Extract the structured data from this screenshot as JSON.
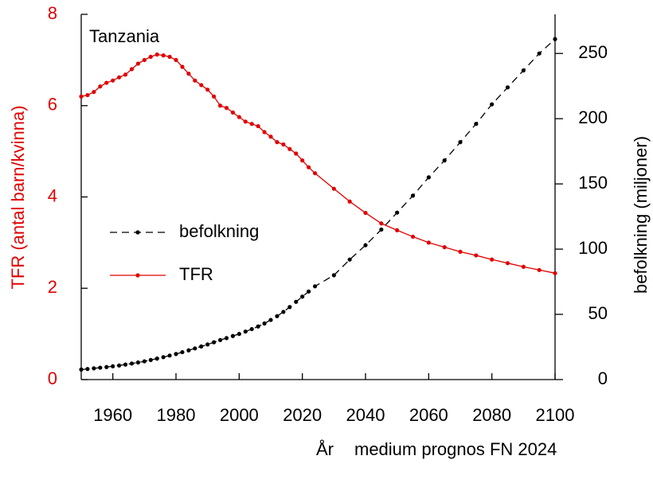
{
  "chart_data": {
    "type": "line",
    "title": "Tanzania",
    "xlabel": "År",
    "note": "medium prognos FN 2024",
    "ylabel": "TFR (antal barn/kvinna)",
    "y2label": "befolkning  (miljoner)",
    "x": [
      1950,
      1952,
      1954,
      1956,
      1958,
      1960,
      1962,
      1964,
      1966,
      1968,
      1970,
      1972,
      1974,
      1976,
      1978,
      1980,
      1982,
      1984,
      1986,
      1988,
      1990,
      1992,
      1994,
      1996,
      1998,
      2000,
      2002,
      2004,
      2006,
      2008,
      2010,
      2012,
      2014,
      2016,
      2018,
      2020,
      2022,
      2024,
      2030,
      2035,
      2040,
      2045,
      2050,
      2055,
      2060,
      2065,
      2070,
      2075,
      2080,
      2085,
      2090,
      2095,
      2100
    ],
    "series": [
      {
        "name": "befolkning",
        "color": "#000000",
        "axis": "y2",
        "linestyle": "dashed",
        "values": [
          7.7,
          8.1,
          8.6,
          9.1,
          9.6,
          10.2,
          10.8,
          11.5,
          12.3,
          13.1,
          14.0,
          15.0,
          16.1,
          17.2,
          18.4,
          19.6,
          21.0,
          22.4,
          23.9,
          25.4,
          26.9,
          28.6,
          30.3,
          31.8,
          33.4,
          35.0,
          36.8,
          38.7,
          40.7,
          43.0,
          45.7,
          48.6,
          51.9,
          55.6,
          59.6,
          63.6,
          67.5,
          71.5,
          80,
          92,
          103,
          115,
          128,
          141,
          155,
          168,
          182,
          196,
          211,
          224,
          237,
          250,
          261
        ]
      },
      {
        "name": "TFR",
        "color": "#e00000",
        "axis": "y",
        "linestyle": "solid",
        "values": [
          6.2,
          6.23,
          6.3,
          6.42,
          6.5,
          6.55,
          6.62,
          6.68,
          6.8,
          6.92,
          7.0,
          7.07,
          7.12,
          7.1,
          7.07,
          7.0,
          6.85,
          6.7,
          6.55,
          6.45,
          6.35,
          6.2,
          6.0,
          5.95,
          5.85,
          5.75,
          5.65,
          5.6,
          5.55,
          5.42,
          5.32,
          5.2,
          5.15,
          5.05,
          4.95,
          4.8,
          4.65,
          4.52,
          4.18,
          3.9,
          3.65,
          3.42,
          3.27,
          3.13,
          3.0,
          2.9,
          2.8,
          2.72,
          2.63,
          2.55,
          2.47,
          2.4,
          2.33
        ]
      }
    ],
    "xlim": [
      1950,
      2100
    ],
    "xticks": [
      1960,
      1980,
      2000,
      2020,
      2040,
      2060,
      2080,
      2100
    ],
    "ylim": [
      0,
      8
    ],
    "yticks": [
      0,
      2,
      4,
      6,
      8
    ],
    "y2lim": [
      0,
      280
    ],
    "y2ticks": [
      0,
      50,
      100,
      150,
      200,
      250
    ],
    "legend": "left",
    "grid": false
  }
}
